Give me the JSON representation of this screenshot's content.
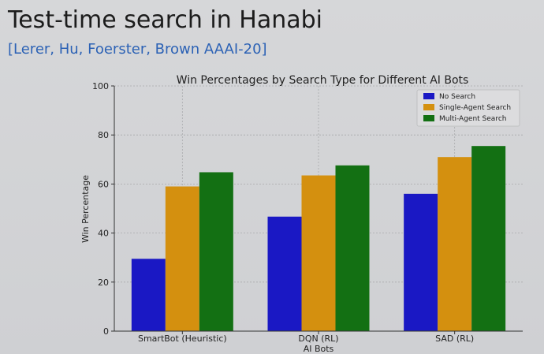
{
  "slide": {
    "title": "Test-time search in Hanabi",
    "citation": "[Lerer, Hu, Foerster, Brown AAAI-20]"
  },
  "colors": {
    "no_search": "#1a18c4",
    "single_agent": "#d4900f",
    "multi_agent": "#137013"
  },
  "chart_data": {
    "type": "bar",
    "title": "Win Percentages by Search Type for Different AI Bots",
    "xlabel": "AI Bots",
    "ylabel": "Win Percentage",
    "ylim": [
      0,
      100
    ],
    "yticks": [
      0,
      20,
      40,
      60,
      80,
      100
    ],
    "grid": true,
    "legend_position": "top-right",
    "categories": [
      "SmartBot (Heuristic)",
      "DQN (RL)",
      "SAD (RL)"
    ],
    "series": [
      {
        "name": "No Search",
        "values": [
          29.5,
          46.7,
          56
        ],
        "color": "#1a18c4"
      },
      {
        "name": "Single-Agent Search",
        "values": [
          59,
          63.5,
          71
        ],
        "color": "#d4900f"
      },
      {
        "name": "Multi-Agent Search",
        "values": [
          64.8,
          67.6,
          75.5
        ],
        "color": "#137013"
      }
    ]
  }
}
